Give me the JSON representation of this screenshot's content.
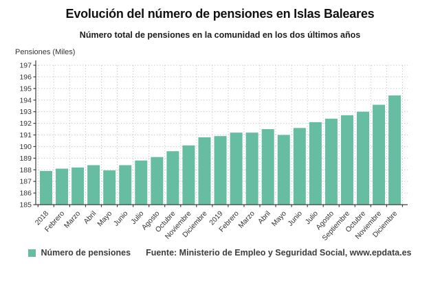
{
  "header": {
    "title": "Evolución del número de pensiones en Islas Baleares",
    "subtitle": "Número total de pensiones en la comunidad en los dos últimos años"
  },
  "chart_data": {
    "type": "bar",
    "title": "Evolución del número de pensiones en Islas Baleares",
    "subtitle": "Número total de pensiones en la comunidad en los dos últimos años",
    "ylabel": "Pensiones (Miles)",
    "xlabel": "",
    "ylim": [
      185,
      197
    ],
    "ytick_step": 1,
    "grid": true,
    "legend_position": "bottom",
    "bar_color": "#66bda2",
    "axis_color": "#3d3d3d",
    "grid_color": "#c9c9c9",
    "categories": [
      "2018",
      "Febrero",
      "Marzo",
      "Abril",
      "Mayo",
      "Junio",
      "Julio",
      "Agosto",
      "Octubre",
      "Noviembre",
      "Diciembre",
      "2019",
      "Febrero",
      "Marzo",
      "Abril",
      "Mayo",
      "Junio",
      "Julio",
      "Agosto",
      "Septiembre",
      "Octubre",
      "Noviembre",
      "Diciembre"
    ],
    "values": [
      187.9,
      188.1,
      188.2,
      188.4,
      187.95,
      188.4,
      188.8,
      189.1,
      189.6,
      190.1,
      190.8,
      190.9,
      191.2,
      191.2,
      191.5,
      191.0,
      191.6,
      192.1,
      192.4,
      192.7,
      193.0,
      193.6,
      194.4
    ],
    "legend_label": "Número de pensiones",
    "source": "Fuente: Ministerio de Empleo y Seguridad Social, www.epdata.es"
  }
}
